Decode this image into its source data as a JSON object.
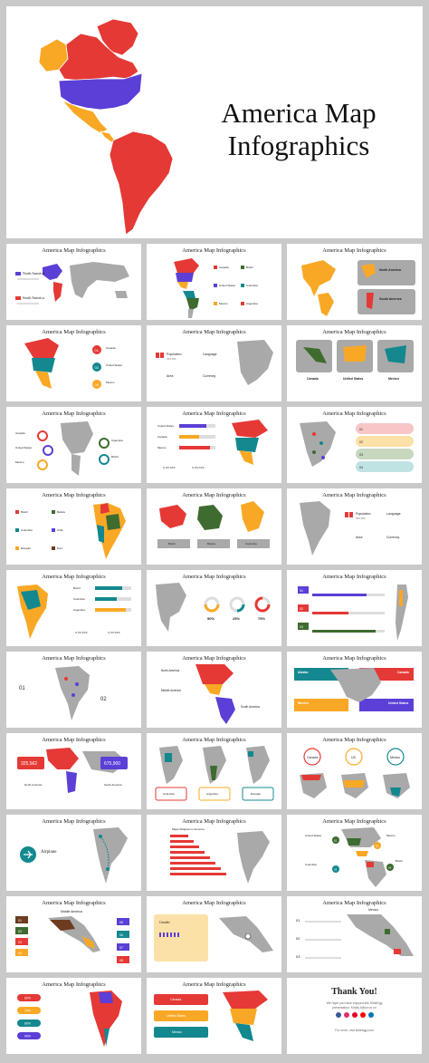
{
  "hero": {
    "title_line1": "America Map",
    "title_line2": "Infographics"
  },
  "slide_title": "America Map Infographics",
  "colors": {
    "red": "#e53935",
    "yellow": "#f9a825",
    "blue": "#5b3fd6",
    "teal": "#13888f",
    "green": "#3e6b2f",
    "gray": "#a9a9a9",
    "bg": "#c9c9c9"
  },
  "slides": [
    {
      "id": 1,
      "labels": [
        "North America",
        "South America"
      ]
    },
    {
      "id": 2,
      "labels": [
        "Canada",
        "Brazil",
        "United States",
        "Colombia",
        "Mexico",
        "Argentina"
      ]
    },
    {
      "id": 3,
      "labels": [
        "North America",
        "South America"
      ]
    },
    {
      "id": 4,
      "labels": [
        "01",
        "02",
        "03",
        "Canada",
        "United States",
        "Mexico"
      ]
    },
    {
      "id": 5,
      "labels": [
        "Population",
        "Language",
        "Area",
        "Currency",
        "XXX,XXX"
      ]
    },
    {
      "id": 6,
      "labels": [
        "Canada",
        "United States",
        "Mexico"
      ]
    },
    {
      "id": 7,
      "labels": [
        "Canada",
        "United States",
        "Mexico",
        "Argentina",
        "Brazil"
      ]
    },
    {
      "id": 8,
      "labels": [
        "United States",
        "Canada",
        "Mexico",
        "X,XX,XXX",
        "X,XX,XXX"
      ]
    },
    {
      "id": 9,
      "labels": [
        "01",
        "02",
        "03",
        "04"
      ]
    },
    {
      "id": 10,
      "labels": [
        "Brazil",
        "Bolivia",
        "Colombia",
        "Chile",
        "Ecuador",
        "Peru"
      ]
    },
    {
      "id": 11,
      "labels": [
        "Brazil",
        "Bolivia",
        "Colombia"
      ]
    },
    {
      "id": 12,
      "labels": [
        "Population",
        "Language",
        "Area",
        "Currency",
        "XXX,XXX"
      ]
    },
    {
      "id": 13,
      "labels": [
        "Brazil",
        "Colombia",
        "Argentina",
        "X,XX,XXX",
        "X,XX,XXX"
      ]
    },
    {
      "id": 14,
      "labels": [
        "50%",
        "25%",
        "75%"
      ]
    },
    {
      "id": 15,
      "labels": [
        "01",
        "02",
        "03"
      ]
    },
    {
      "id": 16,
      "labels": [
        "01",
        "02"
      ]
    },
    {
      "id": 17,
      "labels": [
        "North America",
        "Middle America",
        "South America"
      ]
    },
    {
      "id": 18,
      "labels": [
        "Alaska",
        "Canada",
        "Mexico",
        "United States"
      ]
    },
    {
      "id": 19,
      "labels": [
        "325,562",
        "675,900",
        "North America",
        "South America"
      ]
    },
    {
      "id": 20,
      "labels": [
        "Colombia",
        "Argentina",
        "Ecuador"
      ]
    },
    {
      "id": 21,
      "labels": [
        "Canada",
        "US",
        "Mexico"
      ]
    },
    {
      "id": 22,
      "labels": [
        "Airplane"
      ]
    },
    {
      "id": 23,
      "labels": [
        "Major Religions in America"
      ]
    },
    {
      "id": 24,
      "labels": [
        "United States",
        "Mexico",
        "Colombia",
        "Brazil",
        "01",
        "02",
        "03",
        "04"
      ]
    },
    {
      "id": 25,
      "labels": [
        "Middle America",
        "01",
        "02",
        "03",
        "04",
        "05",
        "06",
        "07",
        "08"
      ]
    },
    {
      "id": 26,
      "labels": [
        "Gender"
      ]
    },
    {
      "id": 27,
      "labels": [
        "Mexico",
        "01",
        "02",
        "03"
      ]
    },
    {
      "id": 28,
      "labels": [
        "60%",
        "70%",
        "80%",
        "90%"
      ]
    },
    {
      "id": 29,
      "labels": [
        "Canada",
        "United States",
        "Mexico"
      ]
    },
    {
      "id": 30,
      "labels": [
        "Thank You!"
      ]
    }
  ],
  "thank_you": {
    "title": "Thank You!",
    "line1": "We hope you have enjoyed this SlideEgg",
    "line2": "presentation. Kindly follow us on",
    "footer": "For more, visit slideegg.com"
  }
}
